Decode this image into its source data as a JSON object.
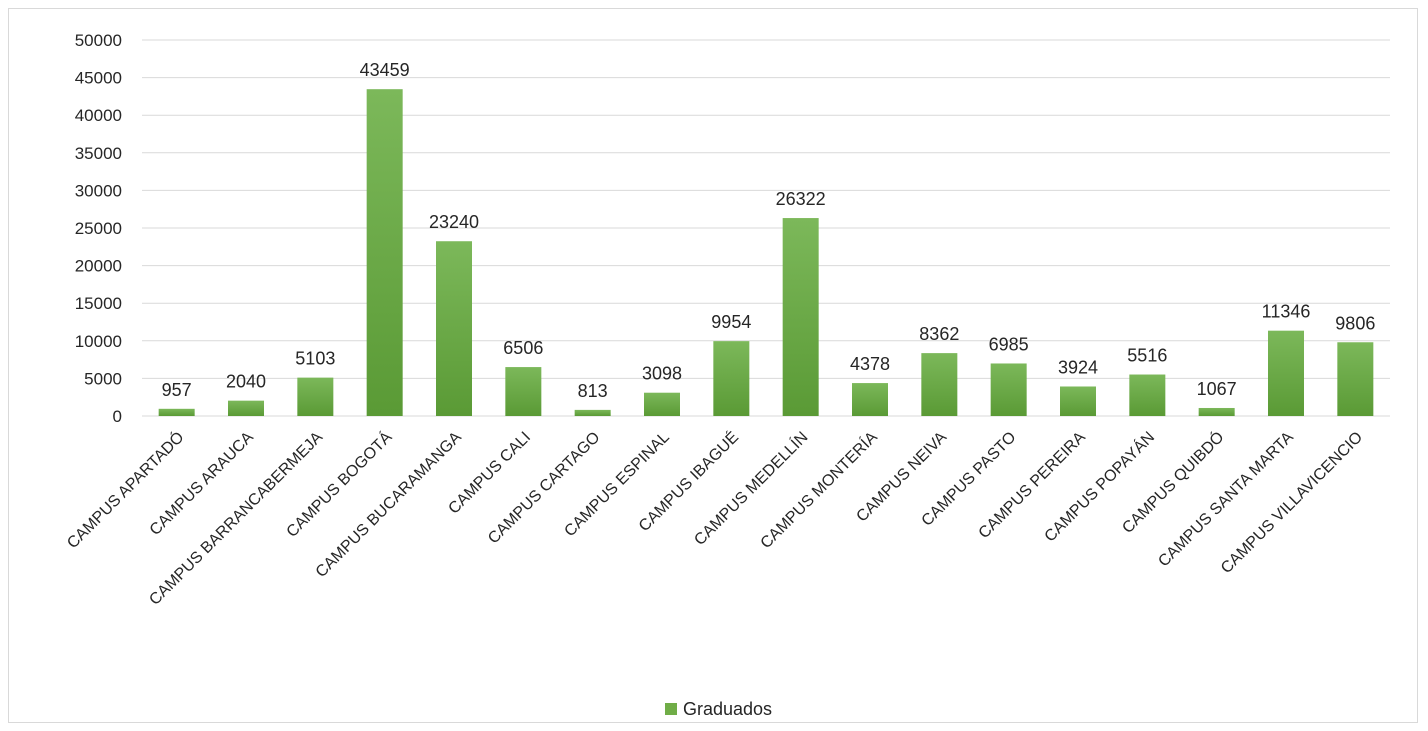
{
  "chart_data": {
    "type": "bar",
    "categories": [
      "CAMPUS APARTADÓ",
      "CAMPUS ARAUCA",
      "CAMPUS BARRANCABERMEJA",
      "CAMPUS BOGOTÁ",
      "CAMPUS BUCARAMANGA",
      "CAMPUS CALI",
      "CAMPUS CARTAGO",
      "CAMPUS ESPINAL",
      "CAMPUS IBAGUÉ",
      "CAMPUS MEDELLÍN",
      "CAMPUS MONTERÍA",
      "CAMPUS NEIVA",
      "CAMPUS PASTO",
      "CAMPUS PEREIRA",
      "CAMPUS POPAYÁN",
      "CAMPUS QUIBDÓ",
      "CAMPUS SANTA MARTA",
      "CAMPUS VILLAVICENCIO"
    ],
    "series": [
      {
        "name": "Graduados",
        "values": [
          957,
          2040,
          5103,
          43459,
          23240,
          6506,
          813,
          3098,
          9954,
          26322,
          4378,
          8362,
          6985,
          3924,
          5516,
          1067,
          11346,
          9806
        ]
      }
    ],
    "ylim": [
      0,
      50000
    ],
    "yticks": [
      "0",
      "5000",
      "10000",
      "15000",
      "20000",
      "25000",
      "30000",
      "35000",
      "40000",
      "45000",
      "50000"
    ],
    "grid": true,
    "legend_position": "bottom",
    "data_labels": true,
    "colors": {
      "bar": "#70ad47",
      "bar_dark": "#5a9a35",
      "grid": "#d9d9d9",
      "text": "#262626"
    }
  },
  "legend": {
    "label": "Graduados"
  }
}
